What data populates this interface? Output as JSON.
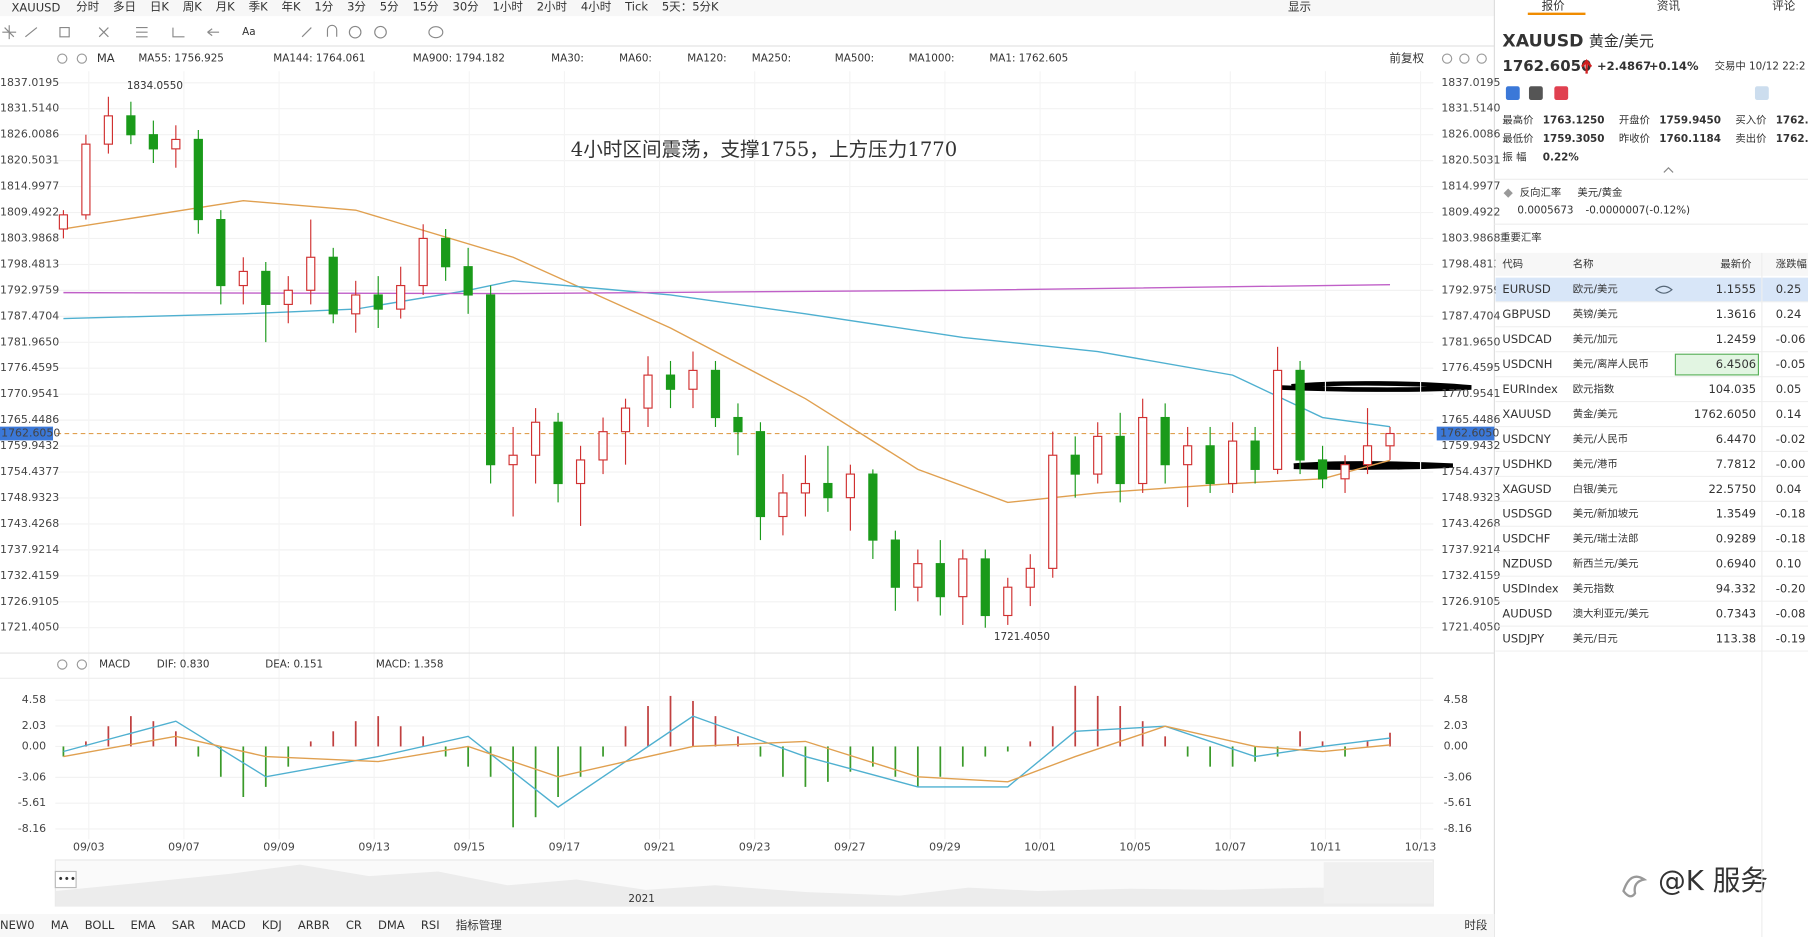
{
  "toolbar": {
    "symbol": "XAUUSD",
    "periods": [
      "分时",
      "多日",
      "日K",
      "周K",
      "月K",
      "季K",
      "年K",
      "1分",
      "3分",
      "5分",
      "15分",
      "30分",
      "1小时",
      "2小时",
      "4小时",
      "Tick",
      "5天：5分K"
    ],
    "display": "显示"
  },
  "indicator_bar": {
    "ma": "MA",
    "items": [
      "MA55: 1756.925",
      "MA144: 1764.061",
      "MA900: 1794.182",
      "MA30:",
      "MA60:",
      "MA120:",
      "MA250:",
      "MA500:",
      "MA1000:",
      "MA1: 1762.605"
    ],
    "adjust": "前复权"
  },
  "chart": {
    "annotation": "4小时区间震荡，支撑1755，上方压力1770",
    "high_label": "1834.0550",
    "low_label": "1721.4050",
    "price_ticks": [
      1837.0195,
      {
        "value": 1831.514,
        "label": "1831.5140"
      },
      1826.0086,
      1820.5031,
      1814.9977,
      1809.4922,
      1803.9868,
      1798.4813,
      1792.9759,
      1787.4704,
      {
        "value": 1781.965,
        "label": "1781.9650"
      },
      1776.4595,
      1770.9541,
      1765.4486,
      1759.9432,
      1754.4377,
      1748.9323,
      1743.4268,
      1737.9214,
      1732.4159,
      1726.9105,
      {
        "value": 1721.405,
        "label": "1721.4050"
      }
    ],
    "current_price": {
      "value": 1762.605,
      "label": "1762.6050"
    },
    "candles": [
      [
        1806,
        1810,
        1804,
        1809
      ],
      [
        1809,
        1826,
        1808,
        1824
      ],
      [
        1824,
        1834.055,
        1822,
        1830
      ],
      [
        1830,
        1833,
        1824,
        1826
      ],
      [
        1826,
        1829,
        1820,
        1823
      ],
      [
        1823,
        1828,
        1819,
        1825
      ],
      [
        1825,
        1827,
        1805,
        1808
      ],
      [
        1808,
        1810,
        1790,
        1794
      ],
      [
        1794,
        1800,
        1790,
        1797
      ],
      [
        1797,
        1799,
        1782,
        1790
      ],
      [
        1790,
        1796,
        1786,
        1793
      ],
      [
        1793,
        1808,
        1790,
        1800
      ],
      [
        1800,
        1802,
        1786,
        1788
      ],
      [
        1788,
        1795,
        1784,
        1792
      ],
      [
        1792,
        1796,
        1785,
        1789
      ],
      [
        1789,
        1798,
        1787,
        1794
      ],
      [
        1794,
        1807,
        1792,
        1804
      ],
      [
        1804,
        1806,
        1795,
        1798
      ],
      [
        1798,
        1802,
        1788,
        1792
      ],
      [
        1792,
        1794,
        1752,
        1756
      ],
      [
        1756,
        1764,
        1745,
        1758
      ],
      [
        1758,
        1768,
        1752,
        1765
      ],
      [
        1765,
        1767,
        1748,
        1752
      ],
      [
        1752,
        1760,
        1743,
        1757
      ],
      [
        1757,
        1766,
        1754,
        1763
      ],
      [
        1763,
        1770,
        1756,
        1768
      ],
      [
        1768,
        1779,
        1764,
        1775
      ],
      [
        1775,
        1778,
        1768,
        1772
      ],
      [
        1772,
        1780,
        1768,
        1776
      ],
      [
        1776,
        1778,
        1764,
        1766
      ],
      [
        1766,
        1769,
        1758,
        1763
      ],
      [
        1763,
        1765,
        1740,
        1745
      ],
      [
        1745,
        1754,
        1741,
        1750
      ],
      [
        1750,
        1758,
        1745,
        1752
      ],
      [
        1752,
        1760,
        1746,
        1749
      ],
      [
        1749,
        1756,
        1742,
        1754
      ],
      [
        1754,
        1755,
        1736,
        1740
      ],
      [
        1740,
        1742,
        1725,
        1730
      ],
      [
        1730,
        1738,
        1727,
        1735
      ],
      [
        1735,
        1740,
        1724,
        1728
      ],
      [
        1728,
        1738,
        1722,
        1736
      ],
      [
        1736,
        1738,
        1721.405,
        1724
      ],
      [
        1724,
        1732,
        1722,
        1730
      ],
      [
        1730,
        1737,
        1726,
        1734
      ],
      [
        1734,
        1763,
        1732,
        1758
      ],
      [
        1758,
        1762,
        1749,
        1754
      ],
      [
        1754,
        1765,
        1752,
        1762
      ],
      [
        1762,
        1767,
        1748,
        1752
      ],
      [
        1752,
        1770,
        1750,
        1766
      ],
      [
        1766,
        1769,
        1752,
        1756
      ],
      [
        1756,
        1764,
        1747,
        1760
      ],
      [
        1760,
        1764,
        1750,
        1752
      ],
      [
        1752,
        1765,
        1750,
        1761
      ],
      [
        1761,
        1764,
        1752,
        1755
      ],
      [
        1755,
        1781,
        1754,
        1776
      ],
      [
        1776,
        1778,
        1754,
        1757
      ],
      [
        1757,
        1760,
        1751,
        1753
      ],
      [
        1753,
        1758,
        1750,
        1756
      ],
      [
        1756,
        1768,
        1754,
        1760
      ],
      [
        1760,
        1764,
        1757,
        1762.605
      ]
    ],
    "ma_lines": [
      {
        "color": "#e0a050",
        "x": [
          0,
          8,
          13,
          20,
          27,
          33,
          38,
          42,
          46,
          52,
          56,
          59
        ],
        "values": [
          1806,
          1812,
          1810,
          1800,
          1785,
          1770,
          1755,
          1748,
          1750,
          1752,
          1753,
          1756.925
        ]
      },
      {
        "color": "#4fb0d0",
        "x": [
          0,
          8,
          13,
          18,
          20,
          27,
          33,
          40,
          46,
          52,
          56,
          59
        ],
        "values": [
          1787,
          1788,
          1789,
          1793,
          1795,
          1792,
          1788,
          1783,
          1780,
          1775,
          1766,
          1764.061
        ]
      },
      {
        "color": "#c060c8",
        "x": [
          0,
          20,
          40,
          59
        ],
        "values": [
          1792.5,
          1792.3,
          1793,
          1794.182
        ]
      }
    ],
    "dates": [
      "09/03",
      "09/07",
      "09/09",
      "09/13",
      "09/15",
      "09/17",
      "09/21",
      "09/23",
      "09/27",
      "09/29",
      "10/01",
      "10/05",
      "10/07",
      "10/11",
      "10/13"
    ]
  },
  "macd": {
    "header": {
      "name": "MACD",
      "dif": "DIF: 0.830",
      "dea": "DEA: 0.151",
      "macd": "MACD: 1.358"
    },
    "ticks": [
      4.58,
      2.03,
      {
        "value": 0,
        "label": "0.00"
      },
      -3.06,
      -5.61,
      -8.16
    ],
    "histogram": [
      -1,
      0.5,
      2,
      3,
      2.5,
      1.5,
      -1,
      -3,
      -5,
      -4,
      -2,
      0.5,
      1.5,
      2.5,
      3,
      2,
      1,
      -1,
      -2,
      -3,
      -8,
      -7,
      -5,
      -3,
      -1,
      2,
      4,
      5,
      4.5,
      3,
      1,
      -1,
      -3,
      -4,
      -3.5,
      -2.5,
      -2,
      -3,
      -4,
      -3,
      -2,
      -1,
      -0.5,
      0.5,
      2,
      6,
      5,
      4,
      2.5,
      1,
      -1,
      -2,
      -2,
      -1.5,
      -1,
      1.5,
      0.5,
      -1,
      0.5,
      1.358
    ],
    "lines": [
      {
        "color": "#4fb0d0",
        "x": [
          0,
          5,
          9,
          14,
          18,
          22,
          28,
          33,
          38,
          42,
          45,
          49,
          53,
          56,
          59
        ],
        "values": [
          -0.5,
          2.5,
          -3,
          -1,
          1,
          -6,
          3,
          -1,
          -4,
          -4,
          1.5,
          2,
          -1,
          0,
          0.83
        ]
      },
      {
        "color": "#e0a050",
        "x": [
          0,
          5,
          9,
          14,
          18,
          22,
          28,
          33,
          38,
          42,
          45,
          49,
          53,
          56,
          59
        ],
        "values": [
          -1,
          1,
          -1,
          -1.5,
          0,
          -3,
          0,
          0.5,
          -3,
          -3.5,
          -1,
          2,
          0,
          -0.5,
          0.151
        ]
      }
    ]
  },
  "navigator": {
    "year": "2021"
  },
  "bottom_tabs": [
    "NEW0",
    "MA",
    "BOLL",
    "EMA",
    "SAR",
    "MACD",
    "KDJ",
    "ARBR",
    "CR",
    "DMA",
    "RSI",
    "指标管理"
  ],
  "bottom_right": "时段",
  "watermark": "@K 服务",
  "panel": {
    "tabs": [
      "报价",
      "资讯",
      "评论"
    ],
    "symbol": "XAUUSD",
    "name": "黄金/美元",
    "price": "1762.6050",
    "change": "+2.4867",
    "change_pct": "+0.14%",
    "status": "交易中 10/12 22:2",
    "stats": [
      [
        "最高价",
        "1763.1250"
      ],
      [
        "开盘价",
        "1759.9450"
      ],
      [
        "买入价",
        "1762."
      ],
      [
        "最低价",
        "1759.3050"
      ],
      [
        "昨收价",
        "1760.1184"
      ],
      [
        "卖出价",
        "1762."
      ]
    ],
    "amplitude_label": "振 幅",
    "amplitude": "0.22%",
    "reverse_label": "反向汇率",
    "reverse_pair": "美元/黄金",
    "reverse_price": "0.0005673",
    "reverse_change": "-0.0000007(-0.12%)",
    "rates_title": "重要汇率",
    "rates_header": [
      "代码",
      "名称",
      "最新价",
      "涨跌幅"
    ],
    "rates": [
      [
        "EURUSD",
        "欧元/美元",
        "1.1555",
        "0.25"
      ],
      [
        "GBPUSD",
        "英镑/美元",
        "1.3616",
        "0.24"
      ],
      [
        "USDCAD",
        "美元/加元",
        "1.2459",
        "-0.06"
      ],
      [
        "USDCNH",
        "美元/离岸人民币",
        "6.4506",
        "-0.05"
      ],
      [
        "EURIndex",
        "欧元指数",
        "104.035",
        "0.05"
      ],
      [
        "XAUUSD",
        "黄金/美元",
        "1762.6050",
        "0.14"
      ],
      [
        "USDCNY",
        "美元/人民币",
        "6.4470",
        "-0.02"
      ],
      [
        "USDHKD",
        "美元/港币",
        "7.7812",
        "-0.00"
      ],
      [
        "XAGUSD",
        "白银/美元",
        "22.5750",
        "0.04"
      ],
      [
        "USDSGD",
        "美元/新加坡元",
        "1.3549",
        "-0.18"
      ],
      [
        "USDCHF",
        "美元/瑞士法郎",
        "0.9289",
        "-0.18"
      ],
      [
        "NZDUSD",
        "新西兰元/美元",
        "0.6940",
        "0.10"
      ],
      [
        "USDIndex",
        "美元指数",
        "94.332",
        "-0.20"
      ],
      [
        "AUDUSD",
        "澳大利亚元/美元",
        "0.7343",
        "-0.08"
      ],
      [
        "USDJPY",
        "美元/日元",
        "113.38",
        "-0.19"
      ]
    ]
  }
}
